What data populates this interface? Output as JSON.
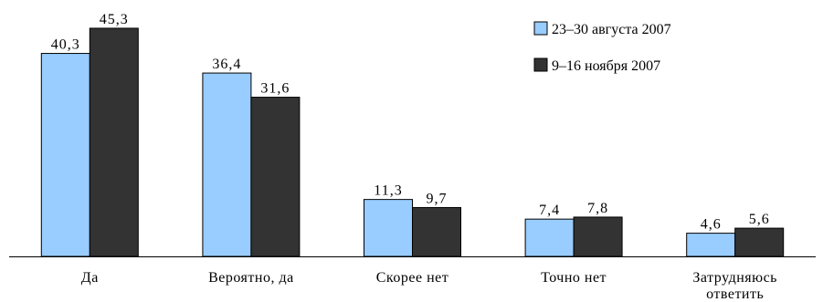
{
  "chart_data": {
    "type": "bar",
    "categories": [
      "Да",
      "Вероятно, да",
      "Скорее нет",
      "Точно нет",
      "Затрудняюсь ответить"
    ],
    "category_lines": [
      [
        "Да"
      ],
      [
        "Вероятно, да"
      ],
      [
        "Скорее нет"
      ],
      [
        "Точно нет"
      ],
      [
        "Затрудняюсь",
        "ответить"
      ]
    ],
    "series": [
      {
        "name": "23–30 августа 2007",
        "values": [
          40.3,
          36.4,
          11.3,
          7.4,
          4.6
        ],
        "labels": [
          "40,3",
          "36,4",
          "11,3",
          "7,4",
          "4,6"
        ],
        "color": "#99ccff"
      },
      {
        "name": "9–16 ноября 2007",
        "values": [
          45.3,
          31.6,
          9.7,
          7.8,
          5.6
        ],
        "labels": [
          "45,3",
          "31,6",
          "9,7",
          "7,8",
          "5,6"
        ],
        "color": "#333333"
      }
    ],
    "title": "",
    "xlabel": "",
    "ylabel": "",
    "ylim": [
      0,
      48
    ],
    "grid": false,
    "legend_position": "top-right"
  }
}
